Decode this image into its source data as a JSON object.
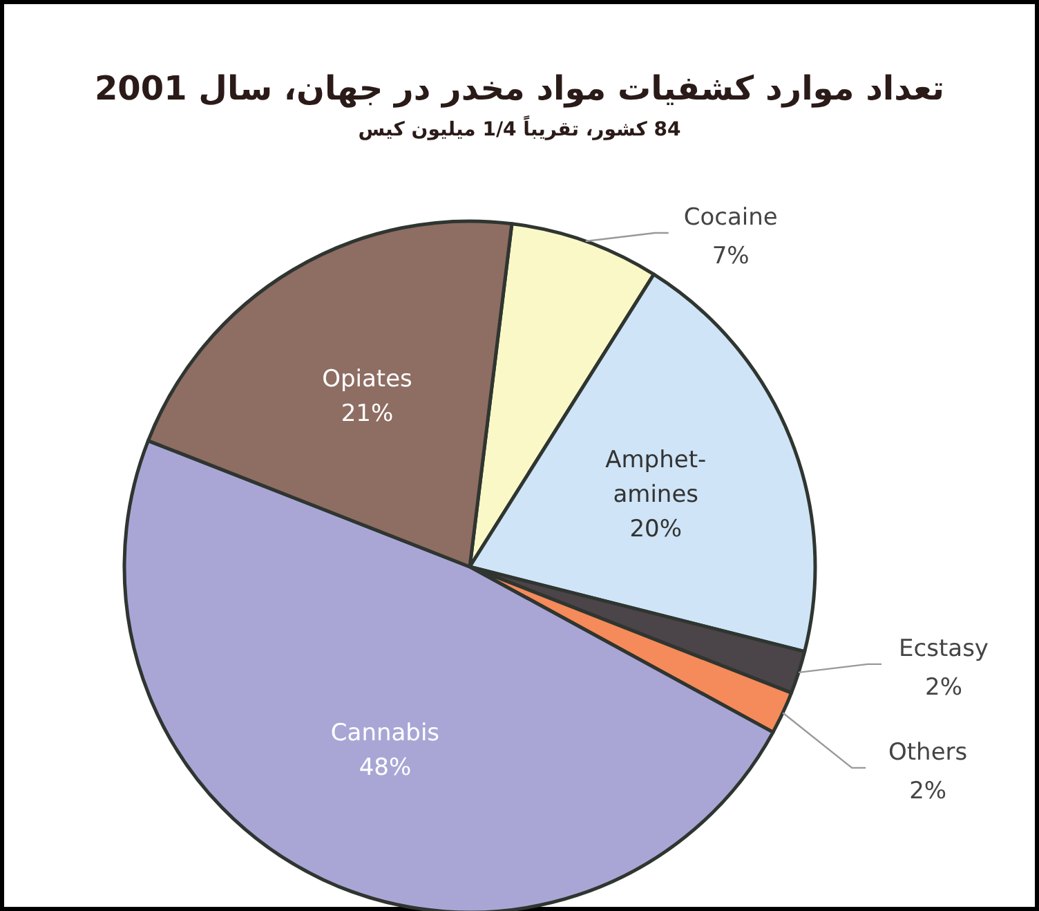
{
  "chart_data": {
    "type": "pie",
    "title": "تعداد موارد کشفیات مواد مخدر در جهان، سال 2001",
    "subtitle": "84 کشور، تقریباً 1/4 میلیون کیس",
    "categories": [
      "Cocaine",
      "Amphet-\namines",
      "Ecstasy",
      "Others",
      "Cannabis",
      "Opiates"
    ],
    "values": [
      7,
      20,
      2,
      2,
      48,
      21
    ],
    "colors": [
      "#fbf8c8",
      "#cfe4f6",
      "#4b4448",
      "#f58a5a",
      "#a9a6d6",
      "#8e6d63"
    ],
    "value_labels": [
      "7%",
      "20%",
      "2%",
      "2%",
      "48%",
      "21%"
    ]
  }
}
